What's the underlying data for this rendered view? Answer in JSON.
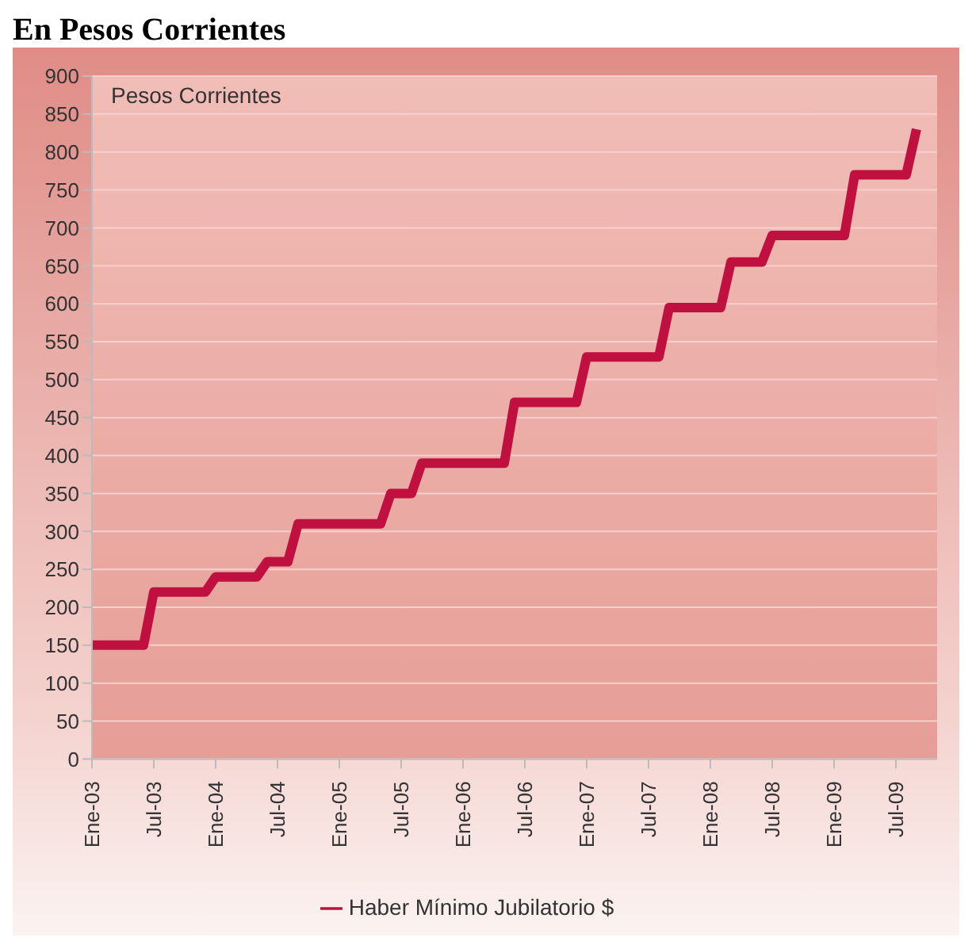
{
  "chart_data": {
    "type": "line",
    "title": "En Pesos Corrientes",
    "annotations": [
      "Pesos Corrientes"
    ],
    "xlim": [
      "2003-01",
      "2009-11"
    ],
    "xticks": [
      {
        "value": "2003-01",
        "label": "Ene-03"
      },
      {
        "value": "2003-07",
        "label": "Jul-03"
      },
      {
        "value": "2004-01",
        "label": "Ene-04"
      },
      {
        "value": "2004-07",
        "label": "Jul-04"
      },
      {
        "value": "2005-01",
        "label": "Ene-05"
      },
      {
        "value": "2005-07",
        "label": "Jul-05"
      },
      {
        "value": "2006-01",
        "label": "Ene-06"
      },
      {
        "value": "2006-07",
        "label": "Jul-06"
      },
      {
        "value": "2007-01",
        "label": "Ene-07"
      },
      {
        "value": "2007-07",
        "label": "Jul-07"
      },
      {
        "value": "2008-01",
        "label": "Ene-08"
      },
      {
        "value": "2008-07",
        "label": "Jul-08"
      },
      {
        "value": "2009-01",
        "label": "Ene-09"
      },
      {
        "value": "2009-07",
        "label": "Jul-09"
      }
    ],
    "ylim": [
      0,
      900
    ],
    "yticks": [
      0,
      50,
      100,
      150,
      200,
      250,
      300,
      350,
      400,
      450,
      500,
      550,
      600,
      650,
      700,
      750,
      800,
      850,
      900
    ],
    "grid": "y",
    "legend": "bottom",
    "marker": "none",
    "line_style": "solid",
    "series": [
      {
        "name": "Haber Mínimo Jubilatorio $",
        "color": "#c0103f",
        "x": [
          "2003-01",
          "2003-06",
          "2003-07",
          "2003-12",
          "2004-01",
          "2004-05",
          "2004-06",
          "2004-08",
          "2004-09",
          "2005-05",
          "2005-06",
          "2005-08",
          "2005-09",
          "2006-05",
          "2006-06",
          "2006-12",
          "2007-01",
          "2007-08",
          "2007-09",
          "2008-02",
          "2008-03",
          "2008-06",
          "2008-07",
          "2009-02",
          "2009-03",
          "2009-08",
          "2009-09"
        ],
        "values": [
          150,
          150,
          220,
          220,
          240,
          240,
          260,
          260,
          310,
          310,
          350,
          350,
          390,
          390,
          470,
          470,
          530,
          530,
          595,
          595,
          655,
          655,
          690,
          690,
          770,
          770,
          830
        ]
      }
    ]
  }
}
